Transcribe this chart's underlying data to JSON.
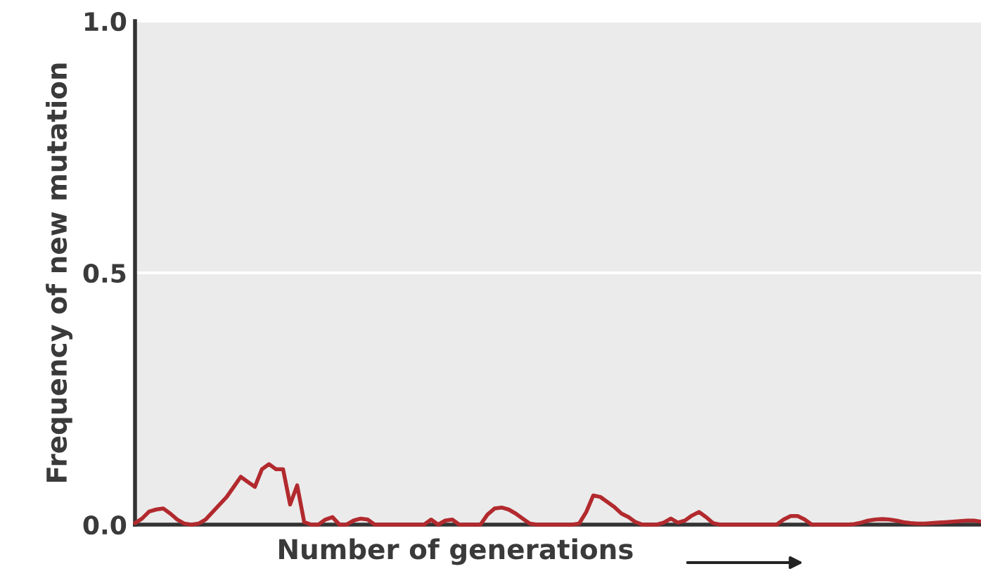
{
  "chart_data": {
    "type": "line",
    "xlabel": "Number of generations",
    "ylabel": "Frequency of new mutation",
    "categories": [
      null,
      null,
      null,
      null,
      null,
      null,
      null,
      null,
      null,
      null,
      null,
      null,
      null,
      null,
      null,
      null,
      null,
      null,
      null,
      null,
      null,
      null,
      null,
      null,
      null,
      null,
      null,
      null,
      null,
      null,
      null,
      null,
      null,
      null,
      null,
      null,
      null,
      null,
      null,
      null,
      null,
      null,
      null,
      null,
      null,
      null,
      null,
      null,
      null,
      null,
      null,
      null,
      null,
      null,
      null,
      null,
      null,
      null,
      null,
      null,
      null,
      null,
      null,
      null,
      null,
      null,
      null,
      null,
      null,
      null,
      null,
      null,
      null,
      null,
      null,
      null,
      null,
      null,
      null,
      null,
      null,
      null,
      null,
      null,
      null,
      null,
      null,
      null,
      null,
      null,
      null,
      null,
      null,
      null,
      null,
      null,
      null,
      null,
      null,
      null,
      null,
      null,
      null,
      null,
      null,
      null,
      null,
      null,
      null,
      null,
      null,
      null,
      null,
      null,
      null,
      null,
      null,
      null,
      null,
      null,
      null
    ],
    "series": [
      {
        "color": "#b22a2e",
        "values": [
          0.003,
          0.012,
          0.026,
          0.03,
          0.032,
          0.022,
          0.01,
          0.002,
          0,
          0.002,
          0.01,
          0.025,
          0.04,
          0.055,
          0.075,
          0.095,
          0.085,
          0.075,
          0.11,
          0.12,
          0.11,
          0.11,
          0.04,
          0.078,
          0.005,
          0,
          0,
          0.01,
          0.015,
          0,
          0,
          0.008,
          0.012,
          0.01,
          0,
          0,
          0,
          0,
          0,
          0,
          0,
          0,
          0.01,
          0,
          0.008,
          0.01,
          0,
          0,
          0,
          0,
          0.02,
          0.032,
          0.034,
          0.03,
          0.022,
          0.012,
          0.002,
          0,
          0,
          0,
          0,
          0,
          0,
          0.002,
          0.025,
          0.058,
          0.055,
          0.045,
          0.035,
          0.022,
          0.015,
          0.005,
          0,
          0,
          0,
          0.004,
          0.012,
          0.004,
          0.008,
          0.018,
          0.025,
          0.015,
          0.003,
          0,
          0,
          0,
          0,
          0,
          0,
          0,
          0,
          0,
          0.01,
          0.017,
          0.017,
          0.01,
          0,
          0,
          0,
          0,
          0,
          0,
          0.001,
          0.004,
          0.008,
          0.01,
          0.011,
          0.01,
          0.008,
          0.005,
          0.003,
          0.002,
          0.002,
          0.003,
          0.004,
          0.005,
          0.006,
          0.007,
          0.008,
          0.008,
          0.006
        ]
      }
    ],
    "ylim": [
      0,
      1
    ],
    "yticks": [
      {
        "value": 0,
        "label": "0.0"
      },
      {
        "value": 0.5,
        "label": "0.5"
      },
      {
        "value": 1,
        "label": "1.0"
      }
    ],
    "grid": "y",
    "tick_labels": "y",
    "line_style": "solid"
  }
}
